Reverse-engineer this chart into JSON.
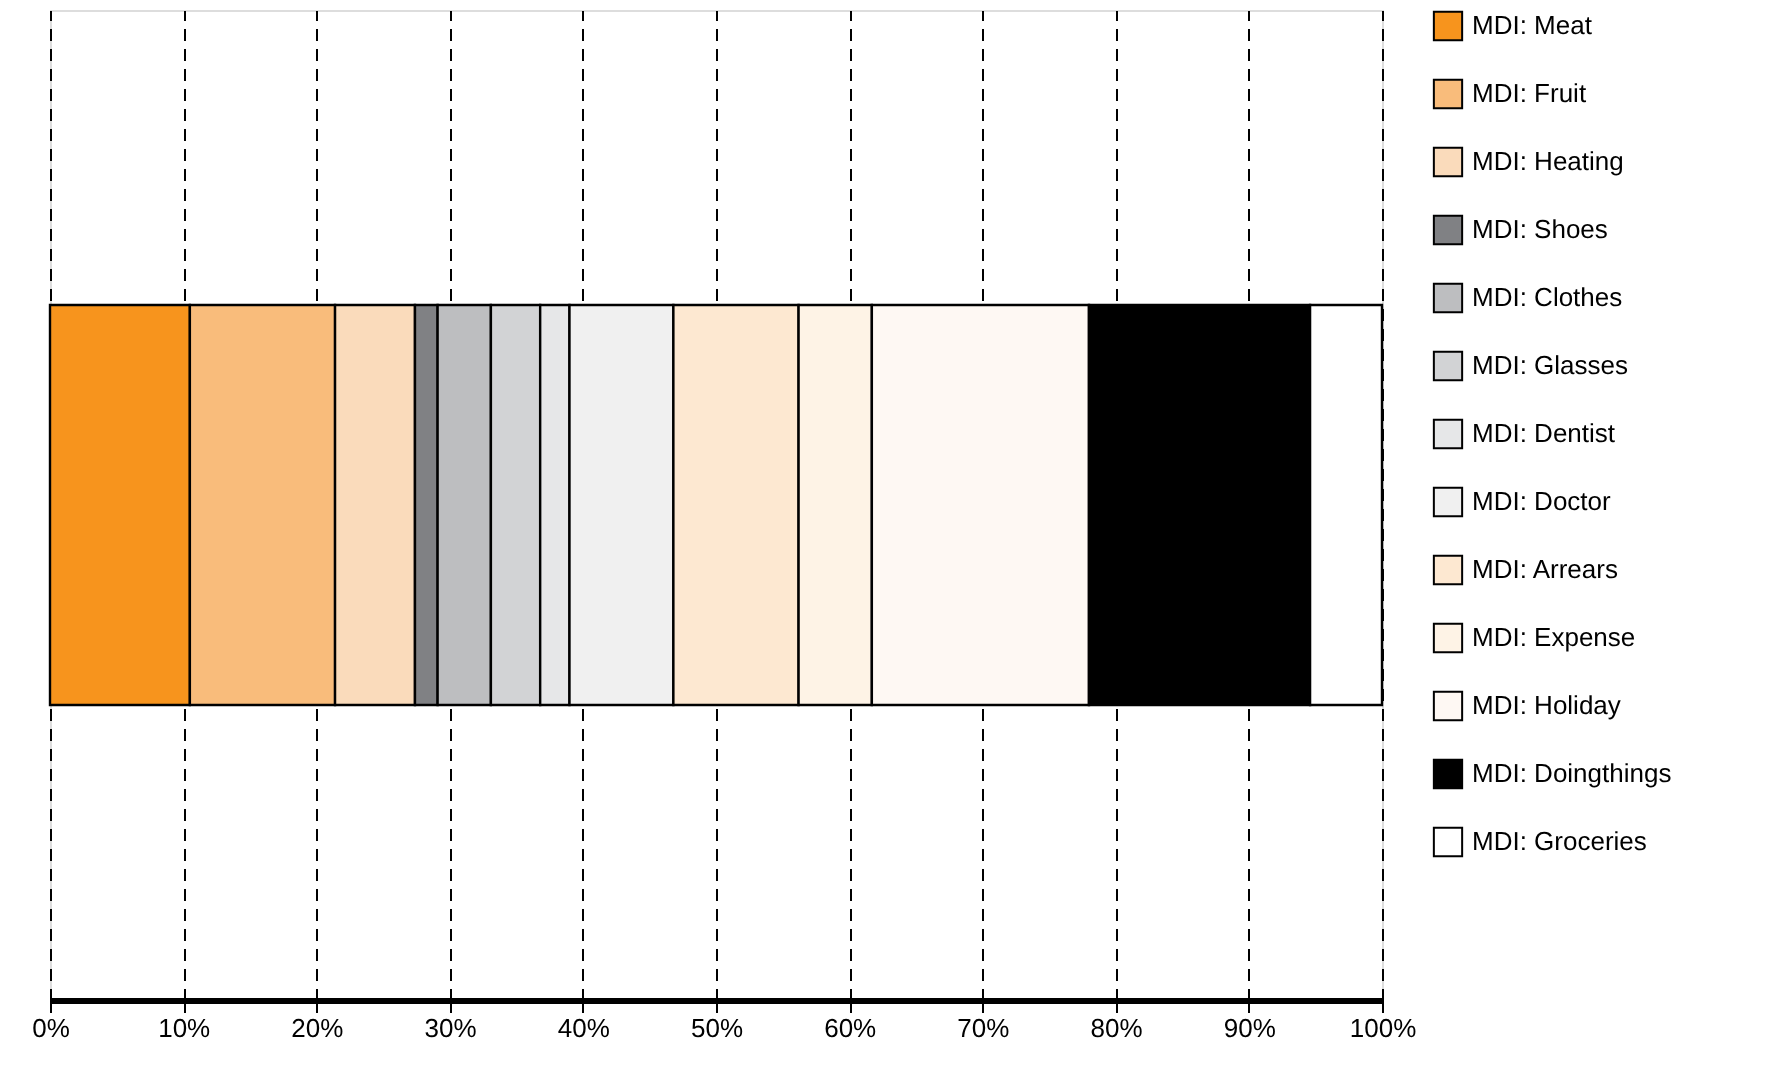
{
  "chart_data": {
    "type": "bar",
    "orientation": "horizontal",
    "stacked": true,
    "categories": [
      null
    ],
    "series": [
      {
        "name": "MDI: Meat",
        "color": "#f7941d",
        "values": [
          10.5
        ]
      },
      {
        "name": "MDI: Fruit",
        "color": "#f9bc7b",
        "values": [
          10.9
        ]
      },
      {
        "name": "MDI: Heating",
        "color": "#fadbbb",
        "values": [
          6.0
        ]
      },
      {
        "name": "MDI: Shoes",
        "color": "#808184",
        "values": [
          1.7
        ]
      },
      {
        "name": "MDI: Clothes",
        "color": "#bdbec0",
        "values": [
          4.0
        ]
      },
      {
        "name": "MDI: Glasses",
        "color": "#d2d3d5",
        "values": [
          3.7
        ]
      },
      {
        "name": "MDI: Dentist",
        "color": "#e6e7e8",
        "values": [
          2.2
        ]
      },
      {
        "name": "MDI: Doctor",
        "color": "#f0f0f0",
        "values": [
          7.8
        ]
      },
      {
        "name": "MDI: Arrears",
        "color": "#fde8d1",
        "values": [
          9.4
        ]
      },
      {
        "name": "MDI: Expense",
        "color": "#fef3e6",
        "values": [
          5.5
        ]
      },
      {
        "name": "MDI: Holiday",
        "color": "#fef8f3",
        "values": [
          16.3
        ]
      },
      {
        "name": "MDI: Doingthings",
        "color": "#000000",
        "values": [
          16.6
        ]
      },
      {
        "name": "MDI: Groceries",
        "color": "#ffffff",
        "values": [
          5.4
        ]
      }
    ],
    "xlim": [
      0,
      100
    ],
    "xticks": [
      {
        "value": 0,
        "label": "0%"
      },
      {
        "value": 10,
        "label": "10%"
      },
      {
        "value": 20,
        "label": "20%"
      },
      {
        "value": 30,
        "label": "30%"
      },
      {
        "value": 40,
        "label": "40%"
      },
      {
        "value": 50,
        "label": "50%"
      },
      {
        "value": 60,
        "label": "60%"
      },
      {
        "value": 70,
        "label": "70%"
      },
      {
        "value": 80,
        "label": "80%"
      },
      {
        "value": 90,
        "label": "90%"
      },
      {
        "value": 100,
        "label": "100%"
      }
    ],
    "grid": "x",
    "legend": "right",
    "tick_labels": "x"
  }
}
